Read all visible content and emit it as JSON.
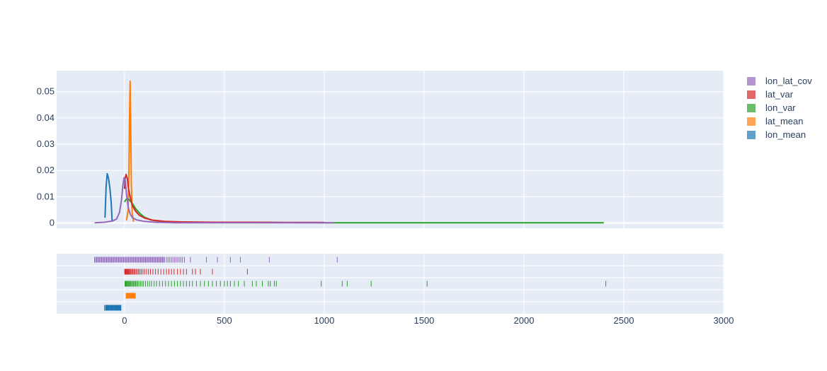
{
  "chart_data": {
    "type": "line",
    "subtype": "distplot",
    "title": "",
    "xlabel": "",
    "ylabel": "",
    "xlim": [
      -340,
      3000
    ],
    "ylim": [
      -0.002,
      0.058
    ],
    "x_ticks": [
      0,
      500,
      1000,
      1500,
      2000,
      2500,
      3000
    ],
    "x_tick_labels": [
      "0",
      "500",
      "1000",
      "1500",
      "2000",
      "2500",
      "3000"
    ],
    "y_ticks": [
      0,
      0.01,
      0.02,
      0.03,
      0.04,
      0.05
    ],
    "y_tick_labels": [
      "0",
      "0.01",
      "0.02",
      "0.03",
      "0.04",
      "0.05"
    ],
    "grid": true,
    "legend_position": "top-right",
    "colors": {
      "plot_background": "#e5ecf6",
      "grid": "#ffffff",
      "tick_text": "#2a3f5f"
    },
    "series": [
      {
        "name": "lon_mean",
        "color": "#1f77b4",
        "kde": [
          [
            -98,
            0.002
          ],
          [
            -92,
            0.014
          ],
          [
            -87,
            0.0188
          ],
          [
            -80,
            0.017
          ],
          [
            -73,
            0.013
          ],
          [
            -67,
            0.008
          ],
          [
            -62,
            0.0005
          ]
        ],
        "rug": [
          -100,
          -95,
          -92,
          -90,
          -88,
          -85,
          -83,
          -80,
          -78,
          -76,
          -73,
          -70,
          -67,
          -65,
          -63,
          -61,
          -58,
          -55,
          -52,
          -50,
          -48,
          -46,
          -44,
          -42,
          -40,
          -38,
          -36,
          -34,
          -32,
          -30,
          -28,
          -26,
          -24,
          -22,
          -20,
          -18
        ]
      },
      {
        "name": "lat_mean",
        "color": "#ff7f0e",
        "kde": [
          [
            10,
            0.001
          ],
          [
            18,
            0.005
          ],
          [
            22,
            0.02
          ],
          [
            25,
            0.04
          ],
          [
            28,
            0.054
          ],
          [
            31,
            0.038
          ],
          [
            34,
            0.015
          ],
          [
            38,
            0.004
          ],
          [
            45,
            0.0005
          ]
        ],
        "rug": [
          8,
          10,
          12,
          14,
          16,
          18,
          20,
          22,
          24,
          26,
          28,
          30,
          32,
          34,
          36,
          38,
          40,
          42,
          44,
          46,
          48,
          50,
          52,
          54
        ]
      },
      {
        "name": "lon_var",
        "color": "#2ca02c",
        "kde": [
          [
            0,
            0.008
          ],
          [
            8,
            0.009
          ],
          [
            15,
            0.0093
          ],
          [
            25,
            0.0087
          ],
          [
            40,
            0.0073
          ],
          [
            60,
            0.005
          ],
          [
            80,
            0.0034
          ],
          [
            100,
            0.0022
          ],
          [
            130,
            0.0012
          ],
          [
            170,
            0.0007
          ],
          [
            250,
            0.0004
          ],
          [
            400,
            0.0003
          ],
          [
            700,
            0.0002
          ],
          [
            1000,
            0.0001
          ],
          [
            1500,
            0.0001
          ],
          [
            2000,
            0.0001
          ],
          [
            2400,
            0.0001
          ]
        ],
        "rug": [
          2,
          5,
          8,
          10,
          14,
          18,
          22,
          26,
          30,
          35,
          40,
          45,
          50,
          55,
          60,
          66,
          72,
          80,
          88,
          95,
          105,
          115,
          125,
          135,
          148,
          160,
          175,
          190,
          205,
          220,
          235,
          250,
          265,
          280,
          295,
          310,
          325,
          340,
          360,
          380,
          400,
          420,
          440,
          460,
          480,
          500,
          515,
          530,
          550,
          570,
          600,
          640,
          660,
          690,
          720,
          730,
          750,
          760,
          985,
          1090,
          1115,
          1235,
          1515,
          2410
        ]
      },
      {
        "name": "lat_var",
        "color": "#d62728",
        "kde": [
          [
            0,
            0.013
          ],
          [
            3,
            0.017
          ],
          [
            8,
            0.0185
          ],
          [
            14,
            0.017
          ],
          [
            20,
            0.013
          ],
          [
            30,
            0.0092
          ],
          [
            40,
            0.0065
          ],
          [
            55,
            0.0045
          ],
          [
            75,
            0.0029
          ],
          [
            100,
            0.0019
          ],
          [
            140,
            0.0011
          ],
          [
            200,
            0.0006
          ],
          [
            300,
            0.0004
          ],
          [
            450,
            0.0003
          ],
          [
            620,
            0.0003
          ],
          [
            800,
            0.0002
          ],
          [
            1000,
            0.0002
          ]
        ],
        "rug": [
          1,
          3,
          5,
          7,
          10,
          13,
          16,
          20,
          24,
          28,
          32,
          37,
          42,
          47,
          52,
          58,
          64,
          70,
          77,
          84,
          92,
          100,
          110,
          120,
          130,
          142,
          155,
          168,
          182,
          196,
          210,
          222,
          235,
          248,
          265,
          280,
          295,
          310,
          340,
          355,
          380,
          440,
          615
        ]
      },
      {
        "name": "lon_lat_cov",
        "color": "#9467bd",
        "kde": [
          [
            -150,
            0.0001
          ],
          [
            -100,
            0.0003
          ],
          [
            -60,
            0.0008
          ],
          [
            -40,
            0.0015
          ],
          [
            -25,
            0.004
          ],
          [
            -15,
            0.009
          ],
          [
            -8,
            0.0145
          ],
          [
            -2,
            0.0172
          ],
          [
            4,
            0.016
          ],
          [
            10,
            0.011
          ],
          [
            18,
            0.006
          ],
          [
            28,
            0.0035
          ],
          [
            40,
            0.002
          ],
          [
            60,
            0.0012
          ],
          [
            100,
            0.0006
          ],
          [
            150,
            0.0003
          ],
          [
            250,
            0.0001
          ],
          [
            400,
            0.0001
          ],
          [
            700,
            0.0001
          ],
          [
            1050,
            0.0001
          ]
        ],
        "rug": [
          -150,
          -145,
          -140,
          -135,
          -130,
          -125,
          -120,
          -115,
          -110,
          -105,
          -100,
          -95,
          -90,
          -85,
          -80,
          -75,
          -70,
          -65,
          -60,
          -55,
          -50,
          -45,
          -40,
          -35,
          -30,
          -25,
          -20,
          -15,
          -10,
          -5,
          0,
          5,
          10,
          15,
          20,
          25,
          30,
          35,
          40,
          45,
          50,
          55,
          60,
          65,
          70,
          75,
          80,
          85,
          90,
          95,
          100,
          105,
          110,
          115,
          120,
          125,
          130,
          135,
          140,
          145,
          150,
          155,
          160,
          165,
          170,
          175,
          180,
          185,
          190,
          195,
          200,
          210,
          218,
          226,
          234,
          242,
          250,
          258,
          266,
          274,
          282,
          290,
          300,
          330,
          410,
          465,
          530,
          580,
          725,
          1065
        ]
      }
    ],
    "legend_order": [
      "lon_lat_cov",
      "lat_var",
      "lon_var",
      "lat_mean",
      "lon_mean"
    ]
  }
}
